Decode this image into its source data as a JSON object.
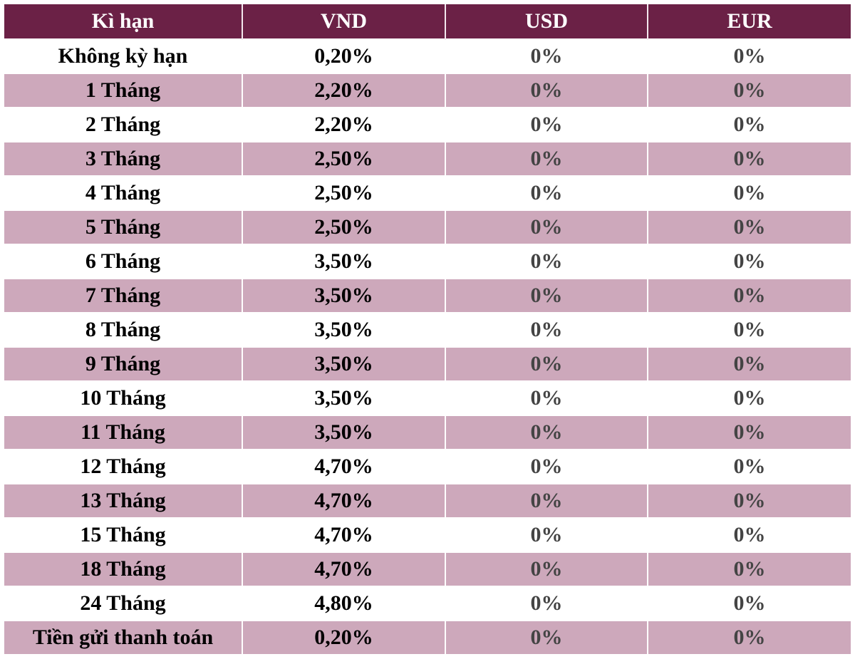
{
  "table": {
    "headers": [
      "Kì hạn",
      "VND",
      "USD",
      "EUR"
    ],
    "rows": [
      [
        "Không kỳ hạn",
        "0,20%",
        "0%",
        "0%"
      ],
      [
        "1 Tháng",
        "2,20%",
        "0%",
        "0%"
      ],
      [
        "2 Tháng",
        "2,20%",
        "0%",
        "0%"
      ],
      [
        "3 Tháng",
        "2,50%",
        "0%",
        "0%"
      ],
      [
        "4 Tháng",
        "2,50%",
        "0%",
        "0%"
      ],
      [
        "5 Tháng",
        "2,50%",
        "0%",
        "0%"
      ],
      [
        "6 Tháng",
        "3,50%",
        "0%",
        "0%"
      ],
      [
        "7 Tháng",
        "3,50%",
        "0%",
        "0%"
      ],
      [
        "8 Tháng",
        "3,50%",
        "0%",
        "0%"
      ],
      [
        "9 Tháng",
        "3,50%",
        "0%",
        "0%"
      ],
      [
        "10 Tháng",
        "3,50%",
        "0%",
        "0%"
      ],
      [
        "11 Tháng",
        "3,50%",
        "0%",
        "0%"
      ],
      [
        "12 Tháng",
        "4,70%",
        "0%",
        "0%"
      ],
      [
        "13 Tháng",
        "4,70%",
        "0%",
        "0%"
      ],
      [
        "15 Tháng",
        "4,70%",
        "0%",
        "0%"
      ],
      [
        "18 Tháng",
        "4,70%",
        "0%",
        "0%"
      ],
      [
        "24 Tháng",
        "4,80%",
        "0%",
        "0%"
      ],
      [
        "Tiền gửi thanh toán",
        "0,20%",
        "0%",
        "0%"
      ]
    ]
  },
  "colors": {
    "header_bg": "#6b2146",
    "header_text": "#ffffff",
    "row_alt_bg": "#cda8bb",
    "row_bg": "#ffffff"
  }
}
